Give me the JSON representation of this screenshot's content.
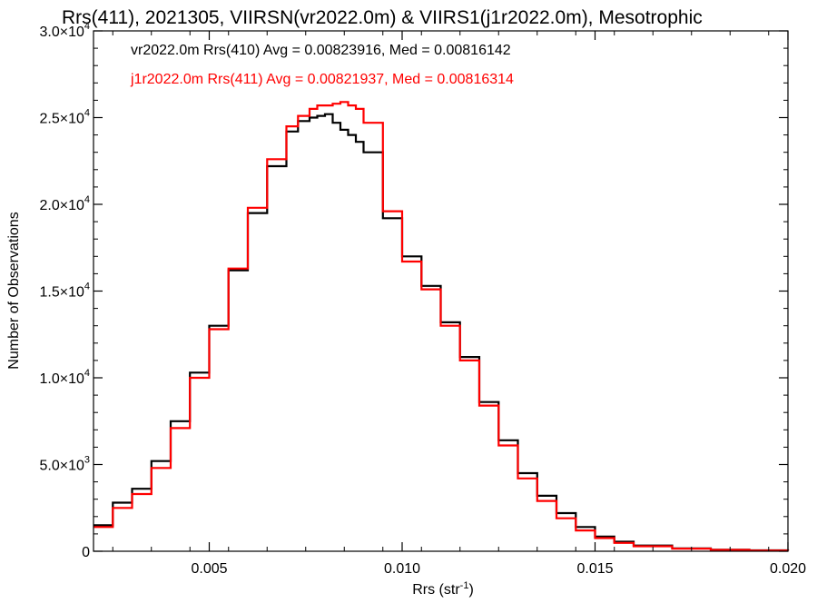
{
  "chart_data": {
    "type": "line",
    "title": "Rrs(411), 2021305, VIIRSN(vr2022.0m) & VIIRS1(j1r2022.0m), Mesotrophic",
    "xlabel": "Rrs (str",
    "xlabel_sup": "-1",
    "xlabel_end": ")",
    "ylabel": "Number of Observations",
    "xlim": [
      0.002,
      0.02
    ],
    "ylim": [
      0,
      30000
    ],
    "x_ticks": [
      0.005,
      0.01,
      0.015,
      0.02
    ],
    "x_tick_labels": [
      "0.005",
      "0.010",
      "0.015",
      "0.020"
    ],
    "y_ticks": [
      {
        "value": 0,
        "mant": "0",
        "exp": ""
      },
      {
        "value": 5000,
        "mant": "5.0×10",
        "exp": "3"
      },
      {
        "value": 10000,
        "mant": "1.0×10",
        "exp": "4"
      },
      {
        "value": 15000,
        "mant": "1.5×10",
        "exp": "4"
      },
      {
        "value": 20000,
        "mant": "2.0×10",
        "exp": "4"
      },
      {
        "value": 25000,
        "mant": "2.5×10",
        "exp": "4"
      },
      {
        "value": 30000,
        "mant": "3.0×10",
        "exp": "4"
      }
    ],
    "legend_placement": "top-left",
    "grid": false,
    "series": [
      {
        "name": "vr2022.0m Rrs(410) Avg = 0.00823916, Med = 0.00816142",
        "color": "#000000",
        "x": [
          0.002,
          0.0025,
          0.003,
          0.0035,
          0.004,
          0.0045,
          0.005,
          0.0055,
          0.006,
          0.0065,
          0.007,
          0.0073,
          0.0076,
          0.0078,
          0.008,
          0.0082,
          0.0084,
          0.0086,
          0.0088,
          0.009,
          0.0095,
          0.01,
          0.0105,
          0.011,
          0.0115,
          0.012,
          0.0125,
          0.013,
          0.0135,
          0.014,
          0.0145,
          0.015,
          0.0155,
          0.016,
          0.017,
          0.018,
          0.019,
          0.02
        ],
        "y": [
          1500,
          2800,
          3600,
          5200,
          7500,
          10300,
          13000,
          16200,
          19500,
          22200,
          24200,
          24800,
          25000,
          25100,
          25200,
          24700,
          24300,
          24000,
          23600,
          23000,
          19200,
          17000,
          15300,
          13200,
          11200,
          8600,
          6400,
          4500,
          3200,
          2200,
          1400,
          850,
          550,
          330,
          170,
          90,
          50,
          30
        ]
      },
      {
        "name": "j1r2022.0m Rrs(411) Avg = 0.00821937, Med = 0.00816314",
        "color": "#ff0000",
        "x": [
          0.002,
          0.0025,
          0.003,
          0.0035,
          0.004,
          0.0045,
          0.005,
          0.0055,
          0.006,
          0.0065,
          0.007,
          0.0073,
          0.0076,
          0.0078,
          0.008,
          0.0082,
          0.0084,
          0.0086,
          0.0088,
          0.009,
          0.0095,
          0.01,
          0.0105,
          0.011,
          0.0115,
          0.012,
          0.0125,
          0.013,
          0.0135,
          0.014,
          0.0145,
          0.015,
          0.0155,
          0.016,
          0.017,
          0.018,
          0.019,
          0.02
        ],
        "y": [
          1400,
          2500,
          3300,
          4800,
          7100,
          10000,
          12800,
          16300,
          19800,
          22600,
          24500,
          25100,
          25500,
          25700,
          25700,
          25800,
          25900,
          25700,
          25500,
          24700,
          19600,
          16700,
          15100,
          13000,
          11000,
          8400,
          6100,
          4200,
          2900,
          1900,
          1200,
          760,
          480,
          290,
          150,
          80,
          40,
          25
        ]
      }
    ]
  }
}
